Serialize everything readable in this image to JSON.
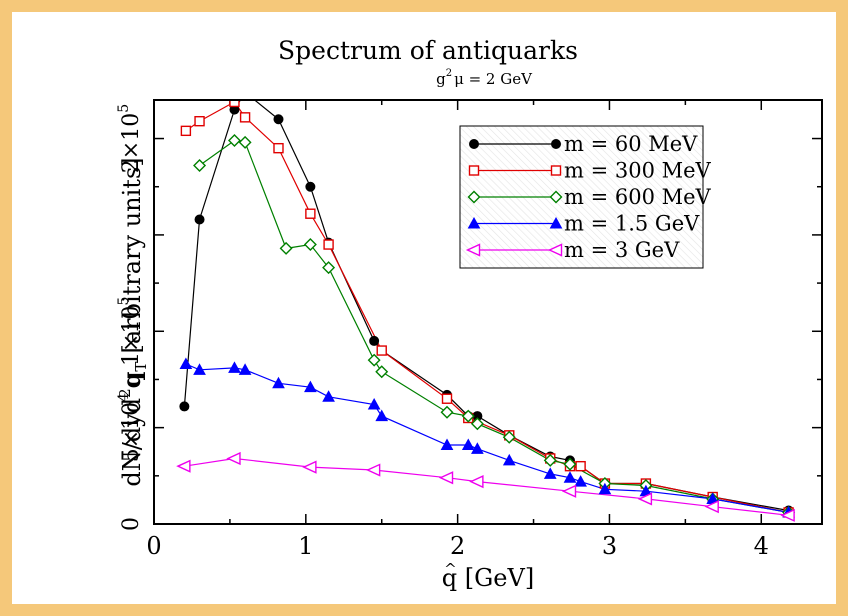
{
  "chart_data": {
    "type": "line",
    "title": "Spectrum of antiquarks",
    "subtitle": "g²μ = 2 GeV",
    "subtitle_parts": {
      "g": "g",
      "sup": "2",
      "rest": "μ = 2 GeV"
    },
    "xlabel": "q̂ [GeV]",
    "xlabel_parts": {
      "q": "q",
      "hat": "^",
      "unit": "[GeV]"
    },
    "ylabel": "dN/dyd²q_T [arbitrary units]",
    "ylabel_parts": {
      "pre": "dN/dyd",
      "sup": "2",
      "q": "q",
      "sub": "T",
      "post": "[arbitrary units]"
    },
    "xlim": [
      0,
      4.4
    ],
    "ylim": [
      0,
      220000
    ],
    "x_ticks": [
      {
        "value": 0,
        "label": "0"
      },
      {
        "value": 1,
        "label": "1"
      },
      {
        "value": 2,
        "label": "2"
      },
      {
        "value": 3,
        "label": "3"
      },
      {
        "value": 4,
        "label": "4"
      }
    ],
    "y_ticks": [
      {
        "value": 0,
        "label": "0",
        "mant": "0",
        "exp": ""
      },
      {
        "value": 50000,
        "label": "5×10⁴",
        "mant": "5×10",
        "exp": "4"
      },
      {
        "value": 100000,
        "label": "1×10⁵",
        "mant": "1×10",
        "exp": "5"
      },
      {
        "value": 200000,
        "label": "2×10⁵",
        "mant": "2×10",
        "exp": "5"
      }
    ],
    "minor_x": 0.5,
    "minor_y": 25000,
    "grid": false,
    "legend_position": "top-right",
    "series": [
      {
        "name": "m = 60 MeV",
        "color": "#000000",
        "marker": "circle-filled",
        "x": [
          0.2,
          0.3,
          0.53,
          0.6,
          0.82,
          1.03,
          1.15,
          1.45,
          1.5,
          1.93,
          2.07,
          2.13,
          2.34,
          2.61,
          2.74,
          2.81,
          2.97,
          3.24,
          3.68,
          4.18
        ],
        "y": [
          61000,
          158000,
          215000,
          224000,
          210000,
          175000,
          146000,
          95000,
          90000,
          67000,
          56000,
          56000,
          46000,
          35000,
          33000,
          30000,
          21000,
          21000,
          14000,
          7000
        ]
      },
      {
        "name": "m = 300 MeV",
        "color": "#e00000",
        "marker": "square-open",
        "x": [
          0.21,
          0.3,
          0.53,
          0.6,
          0.82,
          1.03,
          1.15,
          1.5,
          1.93,
          2.07,
          2.34,
          2.61,
          2.74,
          2.81,
          2.97,
          3.24,
          3.68,
          4.18
        ],
        "y": [
          204000,
          209000,
          219000,
          211000,
          195000,
          161000,
          145000,
          90000,
          65000,
          55000,
          46000,
          34000,
          30000,
          30000,
          21000,
          21000,
          14000,
          6000
        ]
      },
      {
        "name": "m = 600 MeV",
        "color": "#008000",
        "marker": "diamond-open",
        "x": [
          0.3,
          0.53,
          0.6,
          0.87,
          1.03,
          1.15,
          1.45,
          1.5,
          1.93,
          2.07,
          2.13,
          2.34,
          2.61,
          2.74,
          2.97,
          3.24,
          3.68,
          4.18
        ],
        "y": [
          186000,
          199000,
          198000,
          143000,
          145000,
          133000,
          85000,
          79000,
          58000,
          56000,
          52000,
          45000,
          33000,
          31000,
          21000,
          20000,
          13000,
          6000
        ]
      },
      {
        "name": "m = 1.5 GeV",
        "color": "#0000ff",
        "marker": "triangle-up-filled",
        "x": [
          0.21,
          0.3,
          0.53,
          0.6,
          0.82,
          1.03,
          1.15,
          1.45,
          1.5,
          1.93,
          2.07,
          2.13,
          2.34,
          2.61,
          2.74,
          2.81,
          2.97,
          3.24,
          3.68,
          4.18
        ],
        "y": [
          83000,
          80000,
          81000,
          80000,
          73000,
          71000,
          66000,
          62000,
          56000,
          41000,
          41000,
          39000,
          33000,
          26000,
          24000,
          22000,
          18000,
          17000,
          13000,
          6000
        ]
      },
      {
        "name": "m = 3 GeV",
        "color": "#ee00ee",
        "marker": "triangle-left-open",
        "x": [
          0.2,
          0.53,
          1.03,
          1.45,
          1.93,
          2.13,
          2.74,
          3.24,
          3.68,
          4.18
        ],
        "y": [
          30000,
          34000,
          29500,
          28000,
          24000,
          22000,
          17000,
          13000,
          9000,
          4500
        ]
      }
    ]
  }
}
